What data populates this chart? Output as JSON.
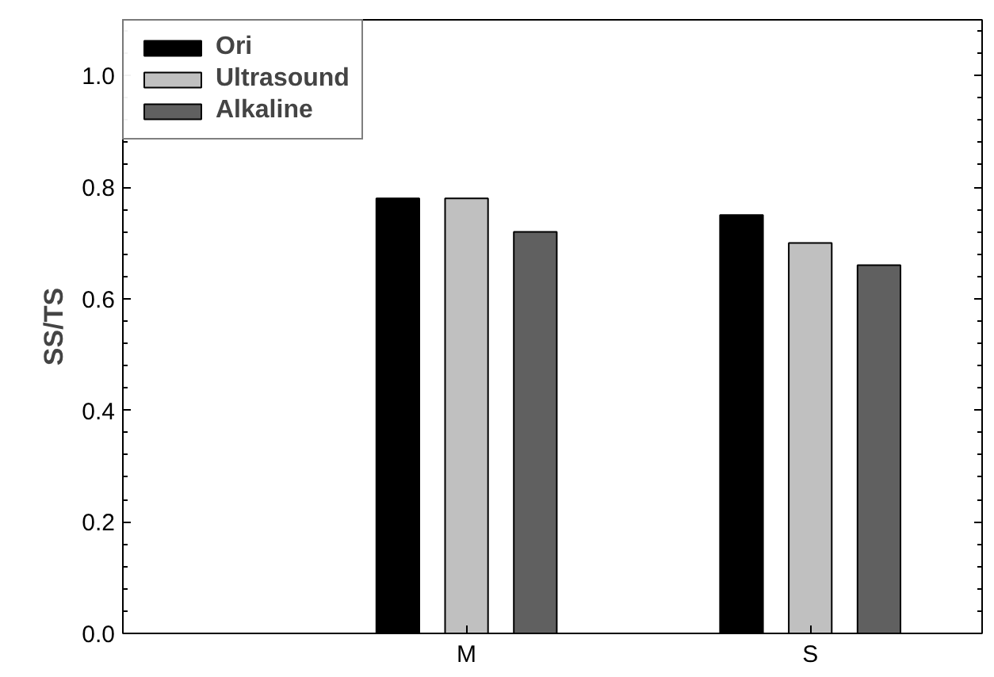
{
  "chart_data": {
    "type": "bar",
    "ylabel": "SS/TS",
    "categories": [
      "M",
      "S"
    ],
    "series": [
      {
        "name": "Ori",
        "color": "#000000",
        "values": [
          0.78,
          0.75
        ]
      },
      {
        "name": "Ultrasound",
        "color": "#c0c0c0",
        "values": [
          0.78,
          0.7
        ]
      },
      {
        "name": "Alkaline",
        "color": "#606060",
        "values": [
          0.72,
          0.66
        ]
      }
    ],
    "ylim": [
      0,
      1.1
    ],
    "yticks": [
      {
        "value": 0,
        "label": "0.0"
      },
      0.2,
      0.4,
      0.6,
      0.8,
      {
        "value": 1.0,
        "label": "1.0"
      }
    ],
    "grid": false,
    "legend": "top left"
  }
}
